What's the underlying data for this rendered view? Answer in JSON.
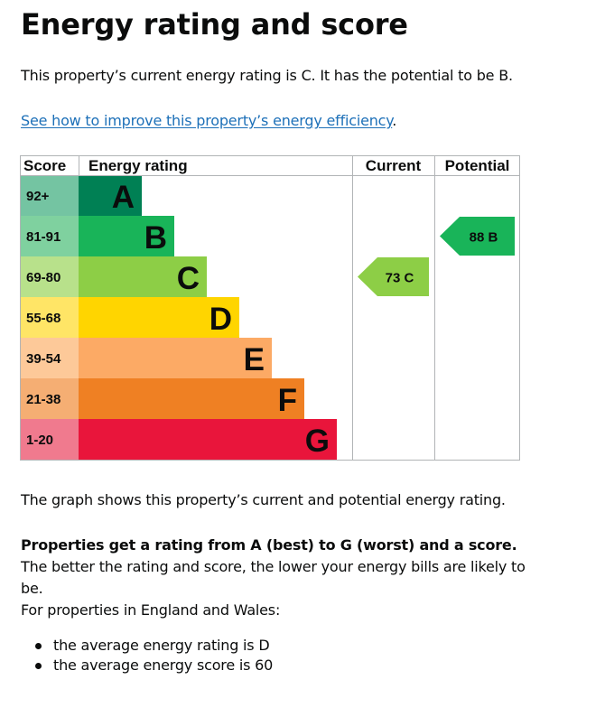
{
  "heading": "Energy rating and score",
  "intro": "This property’s current energy rating is C. It has the potential to be B.",
  "improve_link": "See how to improve this property’s energy efficiency",
  "improve_link_suffix": ".",
  "chart_data": {
    "type": "table",
    "columns": [
      "Score",
      "Energy rating",
      "Current",
      "Potential"
    ],
    "bands": [
      {
        "score": "92+",
        "rating": "A",
        "color": "#008054",
        "score_color": "#74c4a2"
      },
      {
        "score": "81-91",
        "rating": "B",
        "color": "#19b459",
        "score_color": "#7fd19f"
      },
      {
        "score": "69-80",
        "rating": "C",
        "color": "#8dce46",
        "score_color": "#b8e18b"
      },
      {
        "score": "55-68",
        "rating": "D",
        "color": "#ffd500",
        "score_color": "#ffe566"
      },
      {
        "score": "39-54",
        "rating": "E",
        "color": "#fcaa65",
        "score_color": "#fdc999"
      },
      {
        "score": "21-38",
        "rating": "F",
        "color": "#ef8023",
        "score_color": "#f5ae73"
      },
      {
        "score": "1-20",
        "rating": "G",
        "color": "#e9153b",
        "score_color": "#f07a8e"
      }
    ],
    "current": {
      "value": 73,
      "band": "C",
      "label": "73  C",
      "color": "#8dce46"
    },
    "potential": {
      "value": 88,
      "band": "B",
      "label": "88  B",
      "color": "#19b459"
    }
  },
  "graph_note": "The graph shows this property’s current and potential energy rating.",
  "rating_bold": "Properties get a rating from A (best) to G (worst) and a score.",
  "rating_rest": " The better the rating and score, the lower your energy bills are likely to be.",
  "england_wales": "For properties in England and Wales:",
  "bullets": [
    "the average energy rating is D",
    "the average energy score is 60"
  ]
}
